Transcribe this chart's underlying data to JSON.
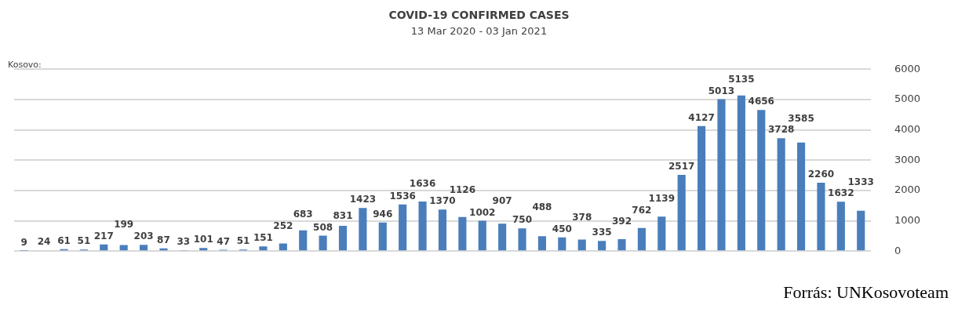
{
  "chart_data": {
    "type": "bar",
    "title": "COVID-19 CONFIRMED CASES",
    "subtitle": "13 Mar 2020 - 03 Jan 2021",
    "categories": [
      null,
      null,
      null,
      null,
      null,
      null,
      null,
      null,
      null,
      null,
      null,
      null,
      null,
      null,
      null,
      null,
      null,
      null,
      null,
      null,
      null,
      null,
      null,
      null,
      null,
      null,
      null,
      null,
      null,
      null,
      null,
      null,
      null,
      null,
      null,
      null,
      null,
      null,
      null,
      null,
      null,
      null,
      null
    ],
    "values": [
      9,
      24,
      61,
      51,
      217,
      199,
      203,
      87,
      33,
      101,
      47,
      51,
      151,
      252,
      683,
      508,
      831,
      1423,
      946,
      1536,
      1636,
      1370,
      1126,
      1002,
      907,
      750,
      488,
      450,
      378,
      335,
      392,
      762,
      1139,
      2517,
      4127,
      5013,
      5135,
      4656,
      3728,
      3585,
      2260,
      1632,
      1333
    ],
    "color": "#4a7ebb",
    "ylim": [
      0,
      6000
    ],
    "yticks": [
      0,
      1000,
      2000,
      3000,
      4000,
      5000,
      6000
    ],
    "grid": "y",
    "data_labels": true,
    "annotations": [
      "Kosovo:",
      "Forrás: UNKosovoteam"
    ]
  }
}
